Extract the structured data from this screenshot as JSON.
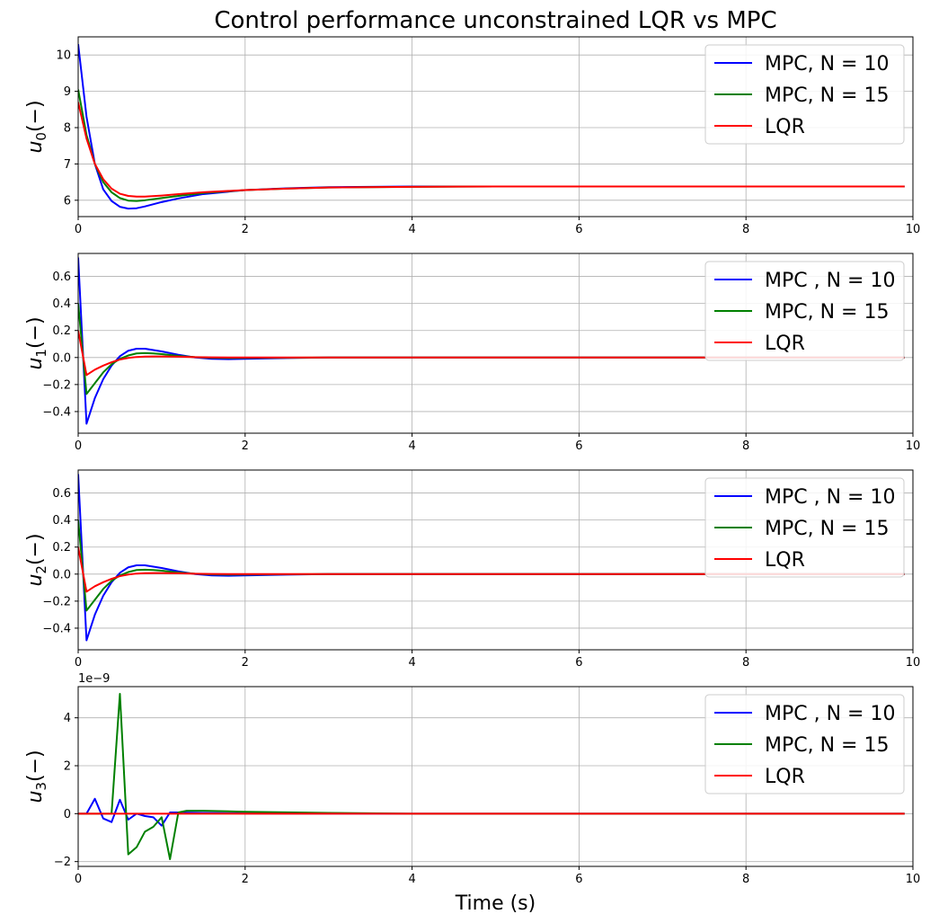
{
  "chart_data": {
    "type": "line",
    "title": "Control performance unconstrained LQR vs MPC",
    "xlabel": "Time (s)",
    "xlim": [
      0,
      10
    ],
    "xticks": [
      0,
      2,
      4,
      6,
      8,
      10
    ],
    "grid": true,
    "legend_placement": "top-right",
    "subplots": [
      {
        "ylabel": "u_0(−)",
        "ylim": [
          5.55,
          10.5
        ],
        "yticks": [
          6,
          7,
          8,
          9,
          10
        ],
        "ytick_labels": [
          "6",
          "7",
          "8",
          "9",
          "10"
        ],
        "offset_text": "",
        "series": [
          {
            "name": "MPC, N = 10",
            "color": "#0000ff",
            "x": [
              0,
              0.1,
              0.2,
              0.3,
              0.4,
              0.5,
              0.6,
              0.7,
              0.8,
              1.0,
              1.2,
              1.5,
              2.0,
              2.5,
              3.0,
              4.0,
              5.0,
              6.0,
              8.0,
              9.9
            ],
            "y": [
              10.3,
              8.3,
              7.0,
              6.3,
              5.98,
              5.82,
              5.77,
              5.78,
              5.83,
              5.95,
              6.05,
              6.17,
              6.28,
              6.33,
              6.36,
              6.38,
              6.38,
              6.38,
              6.38,
              6.38
            ]
          },
          {
            "name": "MPC, N = 15",
            "color": "#008000",
            "x": [
              0,
              0.1,
              0.2,
              0.3,
              0.4,
              0.5,
              0.6,
              0.7,
              0.8,
              1.0,
              1.2,
              1.5,
              2.0,
              2.5,
              3.0,
              4.0,
              5.0,
              6.0,
              8.0,
              9.9
            ],
            "y": [
              9.05,
              7.8,
              7.0,
              6.5,
              6.22,
              6.06,
              5.99,
              5.98,
              6.0,
              6.06,
              6.12,
              6.2,
              6.28,
              6.32,
              6.35,
              6.37,
              6.38,
              6.38,
              6.38,
              6.38
            ]
          },
          {
            "name": "LQR",
            "color": "#ff0000",
            "x": [
              0,
              0.1,
              0.2,
              0.3,
              0.4,
              0.5,
              0.6,
              0.7,
              0.8,
              1.0,
              1.2,
              1.5,
              2.0,
              2.5,
              3.0,
              4.0,
              5.0,
              6.0,
              8.0,
              9.9
            ],
            "y": [
              8.7,
              7.7,
              7.0,
              6.58,
              6.32,
              6.18,
              6.12,
              6.1,
              6.1,
              6.13,
              6.17,
              6.22,
              6.28,
              6.32,
              6.35,
              6.37,
              6.38,
              6.38,
              6.38,
              6.38
            ]
          }
        ]
      },
      {
        "ylabel": "u_1(−)",
        "ylim": [
          -0.56,
          0.77
        ],
        "yticks": [
          -0.4,
          -0.2,
          0.0,
          0.2,
          0.4,
          0.6
        ],
        "ytick_labels": [
          "−0.4",
          "−0.2",
          "0.0",
          "0.2",
          "0.4",
          "0.6"
        ],
        "offset_text": "",
        "series": [
          {
            "name": "MPC , N = 10",
            "color": "#0000ff",
            "x": [
              0,
              0.1,
              0.2,
              0.3,
              0.4,
              0.5,
              0.6,
              0.7,
              0.8,
              0.9,
              1.0,
              1.2,
              1.4,
              1.6,
              1.8,
              2.0,
              2.5,
              3.0,
              4.0,
              6.0,
              8.0,
              9.9
            ],
            "y": [
              0.74,
              -0.49,
              -0.3,
              -0.16,
              -0.06,
              0.01,
              0.05,
              0.065,
              0.065,
              0.055,
              0.045,
              0.02,
              0.0,
              -0.01,
              -0.012,
              -0.01,
              -0.004,
              0,
              0,
              0,
              0,
              0
            ]
          },
          {
            "name": "MPC, N = 15",
            "color": "#008000",
            "x": [
              0,
              0.1,
              0.2,
              0.3,
              0.4,
              0.5,
              0.6,
              0.7,
              0.8,
              0.9,
              1.0,
              1.2,
              1.4,
              1.6,
              1.8,
              2.0,
              2.5,
              3.0,
              4.0,
              6.0,
              8.0,
              9.9
            ],
            "y": [
              0.4,
              -0.27,
              -0.19,
              -0.11,
              -0.05,
              -0.01,
              0.015,
              0.03,
              0.033,
              0.03,
              0.025,
              0.012,
              0.003,
              -0.002,
              -0.004,
              -0.003,
              -0.001,
              0,
              0,
              0,
              0,
              0
            ]
          },
          {
            "name": "LQR",
            "color": "#ff0000",
            "x": [
              0,
              0.1,
              0.2,
              0.3,
              0.4,
              0.5,
              0.6,
              0.7,
              0.8,
              0.9,
              1.0,
              1.2,
              1.4,
              1.6,
              1.8,
              2.0,
              2.5,
              3.0,
              4.0,
              6.0,
              8.0,
              9.9
            ],
            "y": [
              0.2,
              -0.13,
              -0.09,
              -0.06,
              -0.035,
              -0.015,
              -0.003,
              0.004,
              0.007,
              0.008,
              0.008,
              0.006,
              0.003,
              0.001,
              0,
              0,
              0,
              0,
              0,
              0,
              0,
              0
            ]
          }
        ]
      },
      {
        "ylabel": "u_2(−)",
        "ylim": [
          -0.56,
          0.77
        ],
        "yticks": [
          -0.4,
          -0.2,
          0.0,
          0.2,
          0.4,
          0.6
        ],
        "ytick_labels": [
          "−0.4",
          "−0.2",
          "0.0",
          "0.2",
          "0.4",
          "0.6"
        ],
        "offset_text": "",
        "series": [
          {
            "name": "MPC , N = 10",
            "color": "#0000ff",
            "x": [
              0,
              0.1,
              0.2,
              0.3,
              0.4,
              0.5,
              0.6,
              0.7,
              0.8,
              0.9,
              1.0,
              1.2,
              1.4,
              1.6,
              1.8,
              2.0,
              2.5,
              3.0,
              4.0,
              6.0,
              8.0,
              9.9
            ],
            "y": [
              0.74,
              -0.49,
              -0.3,
              -0.16,
              -0.06,
              0.01,
              0.05,
              0.065,
              0.065,
              0.055,
              0.045,
              0.02,
              0.0,
              -0.01,
              -0.012,
              -0.01,
              -0.004,
              0,
              0,
              0,
              0,
              0
            ]
          },
          {
            "name": "MPC, N = 15",
            "color": "#008000",
            "x": [
              0,
              0.1,
              0.2,
              0.3,
              0.4,
              0.5,
              0.6,
              0.7,
              0.8,
              0.9,
              1.0,
              1.2,
              1.4,
              1.6,
              1.8,
              2.0,
              2.5,
              3.0,
              4.0,
              6.0,
              8.0,
              9.9
            ],
            "y": [
              0.4,
              -0.27,
              -0.19,
              -0.11,
              -0.05,
              -0.01,
              0.015,
              0.03,
              0.033,
              0.03,
              0.025,
              0.012,
              0.003,
              -0.002,
              -0.004,
              -0.003,
              -0.001,
              0,
              0,
              0,
              0,
              0
            ]
          },
          {
            "name": "LQR",
            "color": "#ff0000",
            "x": [
              0,
              0.1,
              0.2,
              0.3,
              0.4,
              0.5,
              0.6,
              0.7,
              0.8,
              0.9,
              1.0,
              1.2,
              1.4,
              1.6,
              1.8,
              2.0,
              2.5,
              3.0,
              4.0,
              6.0,
              8.0,
              9.9
            ],
            "y": [
              0.2,
              -0.13,
              -0.09,
              -0.06,
              -0.035,
              -0.015,
              -0.003,
              0.004,
              0.007,
              0.008,
              0.008,
              0.006,
              0.003,
              0.001,
              0,
              0,
              0,
              0,
              0,
              0,
              0,
              0
            ]
          }
        ]
      },
      {
        "ylabel": "u_3(−)",
        "ylim": [
          -2.2,
          5.3
        ],
        "yticks": [
          -2,
          0,
          2,
          4
        ],
        "ytick_labels": [
          "−2",
          "0",
          "2",
          "4"
        ],
        "offset_text": "1e−9",
        "series": [
          {
            "name": "MPC , N = 10",
            "color": "#0000ff",
            "x": [
              0,
              0.1,
              0.2,
              0.3,
              0.4,
              0.5,
              0.6,
              0.7,
              0.8,
              0.9,
              1.0,
              1.1,
              1.2,
              1.5,
              2.0,
              4.0,
              9.9
            ],
            "y": [
              0,
              0.0,
              0.62,
              -0.2,
              -0.35,
              0.58,
              -0.25,
              0.0,
              -0.1,
              -0.15,
              -0.5,
              0.05,
              0.05,
              0.03,
              0.01,
              0,
              0
            ]
          },
          {
            "name": "MPC, N = 15",
            "color": "#008000",
            "x": [
              0,
              0.1,
              0.2,
              0.3,
              0.4,
              0.5,
              0.6,
              0.7,
              0.8,
              0.9,
              1.0,
              1.1,
              1.2,
              1.3,
              1.5,
              2.0,
              3.0,
              4.0,
              9.9
            ],
            "y": [
              0,
              0,
              0,
              0,
              0,
              5.0,
              -1.7,
              -1.4,
              -0.75,
              -0.55,
              -0.15,
              -1.9,
              0.05,
              0.12,
              0.12,
              0.08,
              0.03,
              0,
              0
            ]
          },
          {
            "name": "LQR",
            "color": "#ff0000",
            "x": [
              0,
              9.9
            ],
            "y": [
              0,
              0
            ]
          }
        ]
      }
    ]
  }
}
